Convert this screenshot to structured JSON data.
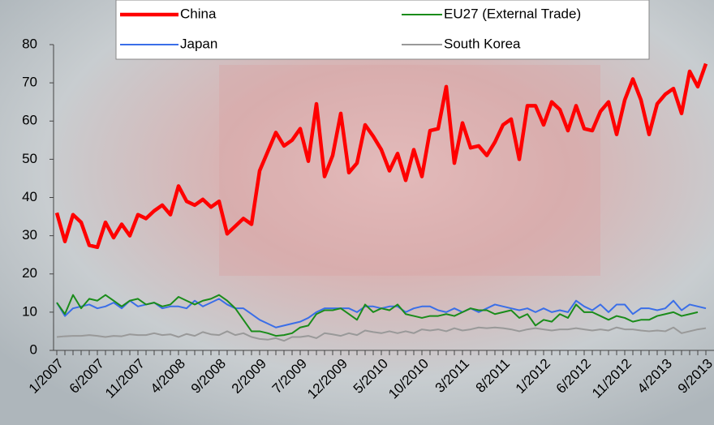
{
  "chart_data": {
    "type": "line",
    "categories": [
      "1/2007",
      null,
      null,
      null,
      null,
      "6/2007",
      null,
      null,
      null,
      null,
      "11/2007",
      null,
      null,
      null,
      null,
      "4/2008",
      null,
      null,
      null,
      null,
      "9/2008",
      null,
      null,
      null,
      null,
      "2/2009",
      null,
      null,
      null,
      null,
      "7/2009",
      null,
      null,
      null,
      null,
      "12/2009",
      null,
      null,
      null,
      null,
      "5/2010",
      null,
      null,
      null,
      null,
      "10/2010",
      null,
      null,
      null,
      null,
      "3/2011",
      null,
      null,
      null,
      null,
      "8/2011",
      null,
      null,
      null,
      null,
      "1/2012",
      null,
      null,
      null,
      null,
      "6/2012",
      null,
      null,
      null,
      null,
      "11/2012",
      null,
      null,
      null,
      null,
      "4/2013",
      null,
      null,
      null,
      null,
      "9/2013"
    ],
    "series": [
      {
        "name": "China",
        "color": "#ff0000",
        "values": [
          36,
          28.5,
          35.5,
          33.5,
          27.5,
          27,
          33.5,
          29.5,
          33,
          30,
          35.5,
          34.5,
          36.5,
          38,
          35.5,
          43,
          39,
          38,
          39.5,
          37.5,
          39,
          30.5,
          32.5,
          34.5,
          33,
          47,
          52,
          57,
          53.5,
          55,
          58,
          49.5,
          64.5,
          45.5,
          51,
          62,
          46.5,
          49,
          59,
          56,
          52.5,
          47,
          51.5,
          44.5,
          52.5,
          45.5,
          57.5,
          58,
          69,
          49,
          59.5,
          53,
          53.5,
          51,
          54.5,
          59,
          60.5,
          50,
          64,
          64,
          59,
          65,
          63,
          57.5,
          64,
          58,
          57.5,
          62.5,
          65,
          56.5,
          65.5,
          71,
          65.5,
          56.5,
          64.5,
          67,
          68.5,
          62,
          73,
          69,
          75
        ]
      },
      {
        "name": "EU27 (External Trade)",
        "color": "#1a8c1a",
        "values": [
          12.5,
          9.5,
          14.5,
          11,
          13.5,
          13,
          14.5,
          13,
          11.5,
          13,
          13.5,
          12,
          12.5,
          11.5,
          12,
          14,
          13,
          12,
          13,
          13.5,
          14.5,
          13,
          11,
          8,
          5,
          5,
          4.5,
          3.8,
          4,
          4.5,
          6,
          6.5,
          9.5,
          10.5,
          10.5,
          11,
          9.5,
          8,
          12,
          10,
          11,
          10.5,
          12,
          9.5,
          9,
          8.5,
          9,
          9,
          9.5,
          9,
          10,
          11,
          10.5,
          10.5,
          9.5,
          10,
          10.5,
          8.5,
          9.5,
          6.5,
          8,
          7.5,
          9.5,
          8.5,
          12,
          10,
          10,
          9,
          8,
          9,
          8.5,
          7.5,
          8,
          8,
          9,
          9.5,
          10,
          9,
          9.5,
          10,
          null
        ]
      },
      {
        "name": "Japan",
        "color": "#3a6ee8",
        "values": [
          12.5,
          9,
          11,
          11.5,
          12,
          11,
          11.5,
          12.5,
          11,
          13,
          11.5,
          12,
          12.5,
          11,
          11.5,
          11.5,
          11,
          13,
          11.5,
          12.5,
          13.5,
          12,
          11,
          11,
          9.5,
          8,
          7,
          6,
          6.5,
          7,
          7.5,
          8.5,
          10,
          11,
          11,
          11,
          11,
          10,
          11.5,
          11.5,
          11,
          11.5,
          11.5,
          10,
          11,
          11.5,
          11.5,
          10.5,
          10,
          11,
          10,
          11,
          10,
          11,
          12,
          11.5,
          11,
          10.5,
          11,
          10,
          11,
          10,
          10.5,
          10,
          13,
          11.5,
          10.5,
          12,
          10,
          12,
          12,
          9.5,
          11,
          11,
          10.5,
          11,
          13,
          10.5,
          12,
          11.5,
          11
        ]
      },
      {
        "name": "South Korea",
        "color": "#999999",
        "values": [
          3.5,
          3.7,
          3.8,
          3.8,
          4,
          3.8,
          3.5,
          3.8,
          3.7,
          4.2,
          4,
          4,
          4.5,
          4,
          4.2,
          3.5,
          4.3,
          3.8,
          4.8,
          4.2,
          4,
          5,
          4,
          4.5,
          3.5,
          3,
          2.8,
          3.2,
          2.5,
          3.5,
          3.5,
          3.8,
          3.2,
          4.5,
          4.2,
          3.8,
          4.5,
          4,
          5.2,
          4.8,
          4.5,
          5,
          4.5,
          5,
          4.5,
          5.5,
          5.2,
          5.5,
          5,
          5.8,
          5.2,
          5.5,
          6,
          5.8,
          6,
          5.8,
          5.5,
          5,
          5.5,
          5.8,
          5.5,
          5.2,
          5.5,
          5.5,
          5.8,
          5.5,
          5.2,
          5.5,
          5.2,
          6,
          5.5,
          5.5,
          5.2,
          5,
          5.2,
          5,
          6,
          4.5,
          5,
          5.5,
          5.8
        ]
      }
    ],
    "ylim": [
      0,
      80
    ],
    "yticks": [
      0,
      10,
      20,
      30,
      40,
      50,
      60,
      70,
      80
    ]
  }
}
